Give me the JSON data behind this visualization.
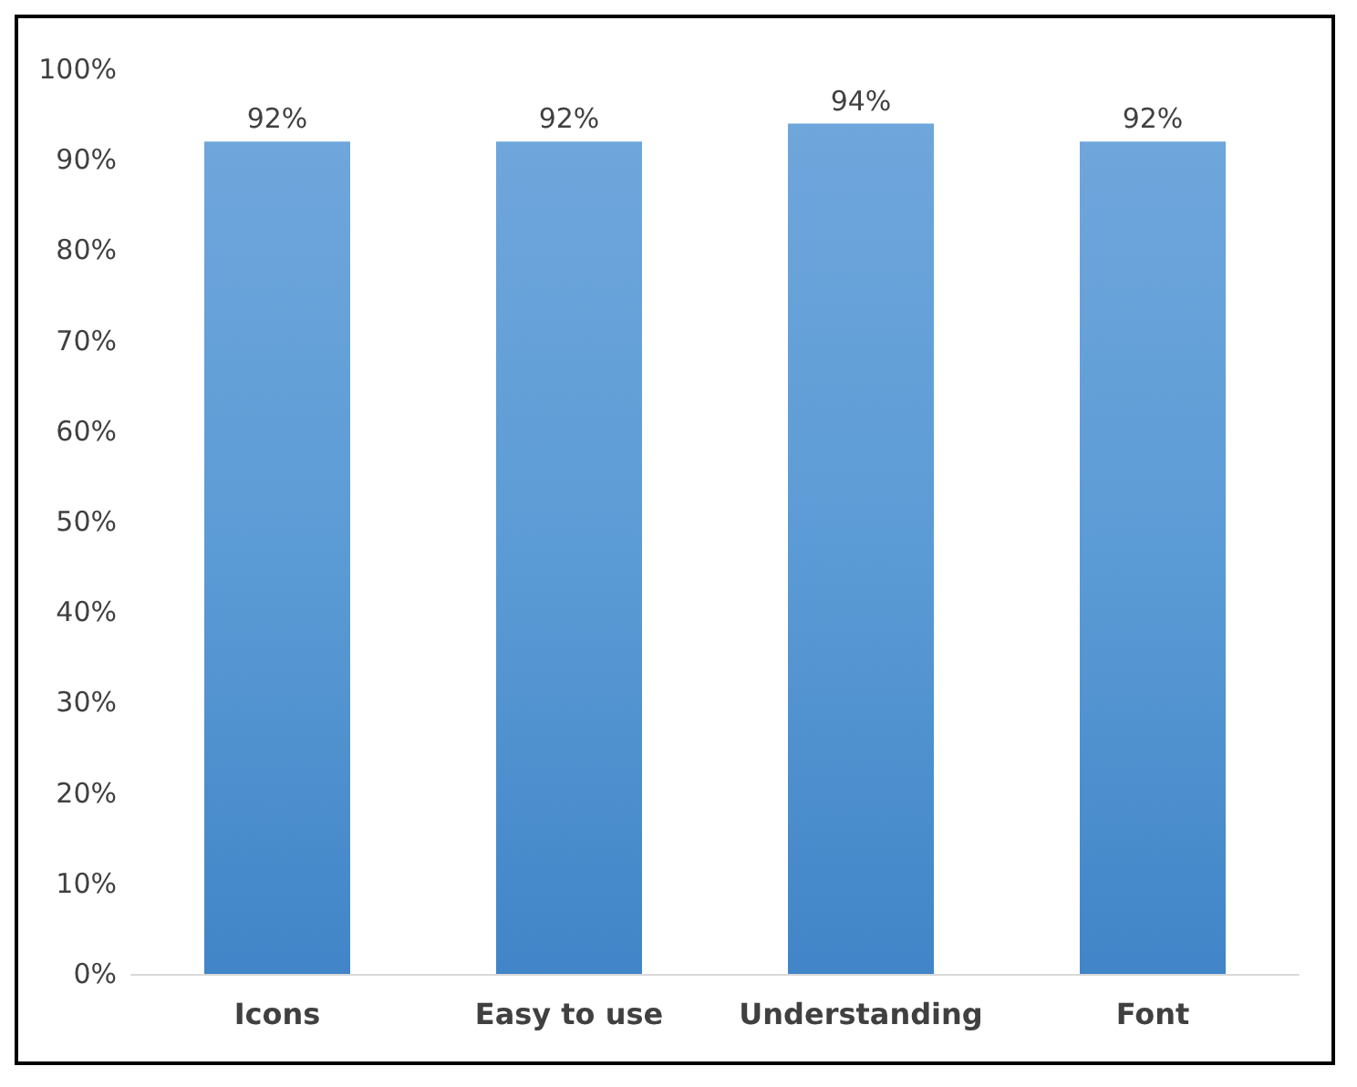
{
  "chart_data": {
    "type": "bar",
    "categories": [
      "Icons",
      "Easy to use",
      "Understanding",
      "Font"
    ],
    "values": [
      92,
      92,
      94,
      92
    ],
    "color": "#5b9bd5",
    "value_labels": [
      "92%",
      "92%",
      "94%",
      "92%"
    ],
    "ylim": [
      0,
      100
    ],
    "yticks": [
      {
        "value": 0,
        "label": "0%"
      },
      {
        "value": 10,
        "label": "10%"
      },
      {
        "value": 20,
        "label": "20%"
      },
      {
        "value": 30,
        "label": "30%"
      },
      {
        "value": 40,
        "label": "40%"
      },
      {
        "value": 50,
        "label": "50%"
      },
      {
        "value": 60,
        "label": "60%"
      },
      {
        "value": 70,
        "label": "70%"
      },
      {
        "value": 80,
        "label": "80%"
      },
      {
        "value": 90,
        "label": "90%"
      },
      {
        "value": 100,
        "label": "100%"
      }
    ],
    "grid": false
  }
}
